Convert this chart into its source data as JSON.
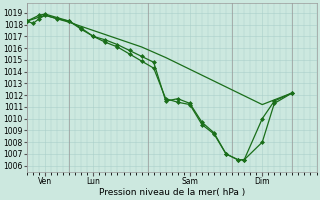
{
  "bg_color": "#cce8df",
  "grid_color": "#aacfca",
  "line_color": "#1a6e1a",
  "marker_color": "#1a6e1a",
  "ylabel_ticks": [
    1006,
    1007,
    1008,
    1009,
    1010,
    1011,
    1012,
    1013,
    1014,
    1015,
    1016,
    1017,
    1018,
    1019
  ],
  "ylim": [
    1005.5,
    1019.8
  ],
  "xlim": [
    0,
    96
  ],
  "xlabel": "Pression niveau de la mer( hPa )",
  "xtick_positions": [
    6,
    22,
    54,
    78
  ],
  "xtick_labels": [
    "Ven",
    "Lun",
    "Sam",
    "Dim"
  ],
  "vline_positions": [
    0,
    14,
    40,
    68,
    88
  ],
  "series1_x": [
    0,
    2,
    4,
    6,
    10,
    14,
    18,
    22,
    26,
    30,
    34,
    38,
    42,
    46,
    50,
    54,
    58,
    62,
    66,
    70,
    72,
    78,
    82,
    88
  ],
  "series1_y": [
    1018.3,
    1018.1,
    1018.5,
    1018.8,
    1018.5,
    1018.3,
    1017.6,
    1017.0,
    1016.7,
    1016.3,
    1015.8,
    1015.3,
    1014.8,
    1011.5,
    1011.7,
    1011.3,
    1009.7,
    1008.8,
    1007.0,
    1006.5,
    1006.5,
    1008.0,
    1011.3,
    1012.2
  ],
  "series2_x": [
    0,
    4,
    6,
    10,
    14,
    18,
    22,
    26,
    30,
    34,
    38,
    42,
    46,
    50,
    54,
    58,
    62,
    66,
    70,
    72,
    78,
    82,
    88
  ],
  "series2_y": [
    1018.3,
    1018.8,
    1018.9,
    1018.6,
    1018.3,
    1017.7,
    1017.0,
    1016.5,
    1016.1,
    1015.5,
    1014.9,
    1014.3,
    1011.7,
    1011.4,
    1011.2,
    1009.5,
    1008.7,
    1007.0,
    1006.5,
    1006.5,
    1010.0,
    1011.5,
    1012.2
  ],
  "series3_x": [
    0,
    6,
    14,
    22,
    30,
    38,
    46,
    54,
    62,
    70,
    78,
    88
  ],
  "series3_y": [
    1018.3,
    1018.8,
    1018.2,
    1017.5,
    1016.8,
    1016.1,
    1015.2,
    1014.2,
    1013.2,
    1012.2,
    1011.2,
    1012.2
  ],
  "title_fontsize": 6.0,
  "tick_fontsize": 5.5,
  "xlabel_fontsize": 6.5
}
